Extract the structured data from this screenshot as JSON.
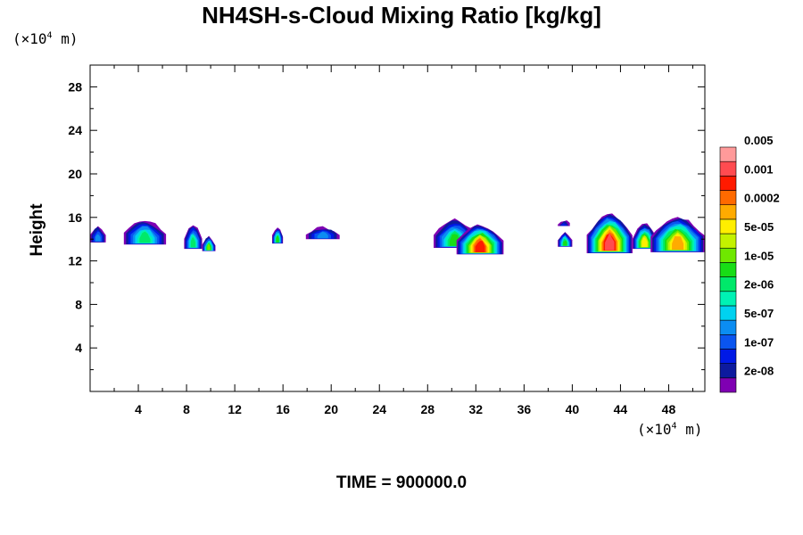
{
  "chart_data": {
    "type": "heatmap",
    "title": "NH4SH-s-Cloud Mixing Ratio [kg/kg]",
    "xlabel": "",
    "ylabel": "Height",
    "x_unit_prefix": "(×10",
    "x_unit_exp": "4",
    "x_unit_suffix": " m)",
    "y_unit_prefix": "(×10",
    "y_unit_exp": "4",
    "y_unit_suffix": " m)",
    "xlim": [
      0,
      51
    ],
    "ylim": [
      0,
      30
    ],
    "x_ticks": [
      4,
      8,
      12,
      16,
      20,
      24,
      28,
      32,
      36,
      40,
      44,
      48
    ],
    "x_tick_labels": [
      "4",
      "8",
      "12",
      "16",
      "20",
      "24",
      "28",
      "32",
      "36",
      "40",
      "44",
      "48"
    ],
    "y_ticks": [
      4,
      8,
      12,
      16,
      20,
      24,
      28
    ],
    "y_tick_labels": [
      "4",
      "8",
      "12",
      "16",
      "20",
      "24",
      "28"
    ],
    "footer": "TIME = 900000.0",
    "colorbar": {
      "colors": [
        "#7f00b2",
        "#0d1a9e",
        "#0019e6",
        "#0a55f0",
        "#0b8df2",
        "#00d2f0",
        "#00f2b4",
        "#00e96a",
        "#18dd16",
        "#6fe800",
        "#c3f200",
        "#ffee00",
        "#ffab00",
        "#ff6a00",
        "#ff1a00",
        "#ff4b50",
        "#ff9a9a"
      ],
      "labels": [
        "2e-08",
        "1e-07",
        "5e-07",
        "2e-06",
        "1e-05",
        "5e-05",
        "0.0002",
        "0.001",
        "0.005"
      ]
    },
    "cloud_blobs": [
      {
        "x0": 0.0,
        "x1": 1.3,
        "top": 15.2,
        "bottom": 13.7,
        "peak_level": 4
      },
      {
        "x0": 2.8,
        "x1": 6.3,
        "top": 15.7,
        "bottom": 13.5,
        "peak_level": 7
      },
      {
        "x0": 7.8,
        "x1": 9.3,
        "top": 15.3,
        "bottom": 13.1,
        "peak_level": 7
      },
      {
        "x0": 9.3,
        "x1": 10.4,
        "top": 14.2,
        "bottom": 12.9,
        "peak_level": 9
      },
      {
        "x0": 15.1,
        "x1": 16.0,
        "top": 15.1,
        "bottom": 13.6,
        "peak_level": 8
      },
      {
        "x0": 17.9,
        "x1": 20.7,
        "top": 15.1,
        "bottom": 14.0,
        "peak_level": 4
      },
      {
        "x0": 28.5,
        "x1": 32.0,
        "top": 15.8,
        "bottom": 13.2,
        "peak_level": 8
      },
      {
        "x0": 30.4,
        "x1": 34.3,
        "top": 15.3,
        "bottom": 12.6,
        "peak_level": 14
      },
      {
        "x0": 38.8,
        "x1": 39.8,
        "top": 15.7,
        "bottom": 15.2,
        "peak_level": 2
      },
      {
        "x0": 38.8,
        "x1": 40.0,
        "top": 14.6,
        "bottom": 13.3,
        "peak_level": 8
      },
      {
        "x0": 41.2,
        "x1": 45.0,
        "top": 16.3,
        "bottom": 12.7,
        "peak_level": 15
      },
      {
        "x0": 45.0,
        "x1": 47.0,
        "top": 15.4,
        "bottom": 13.1,
        "peak_level": 11
      },
      {
        "x0": 46.5,
        "x1": 51.0,
        "top": 16.0,
        "bottom": 12.8,
        "peak_level": 12
      }
    ]
  }
}
